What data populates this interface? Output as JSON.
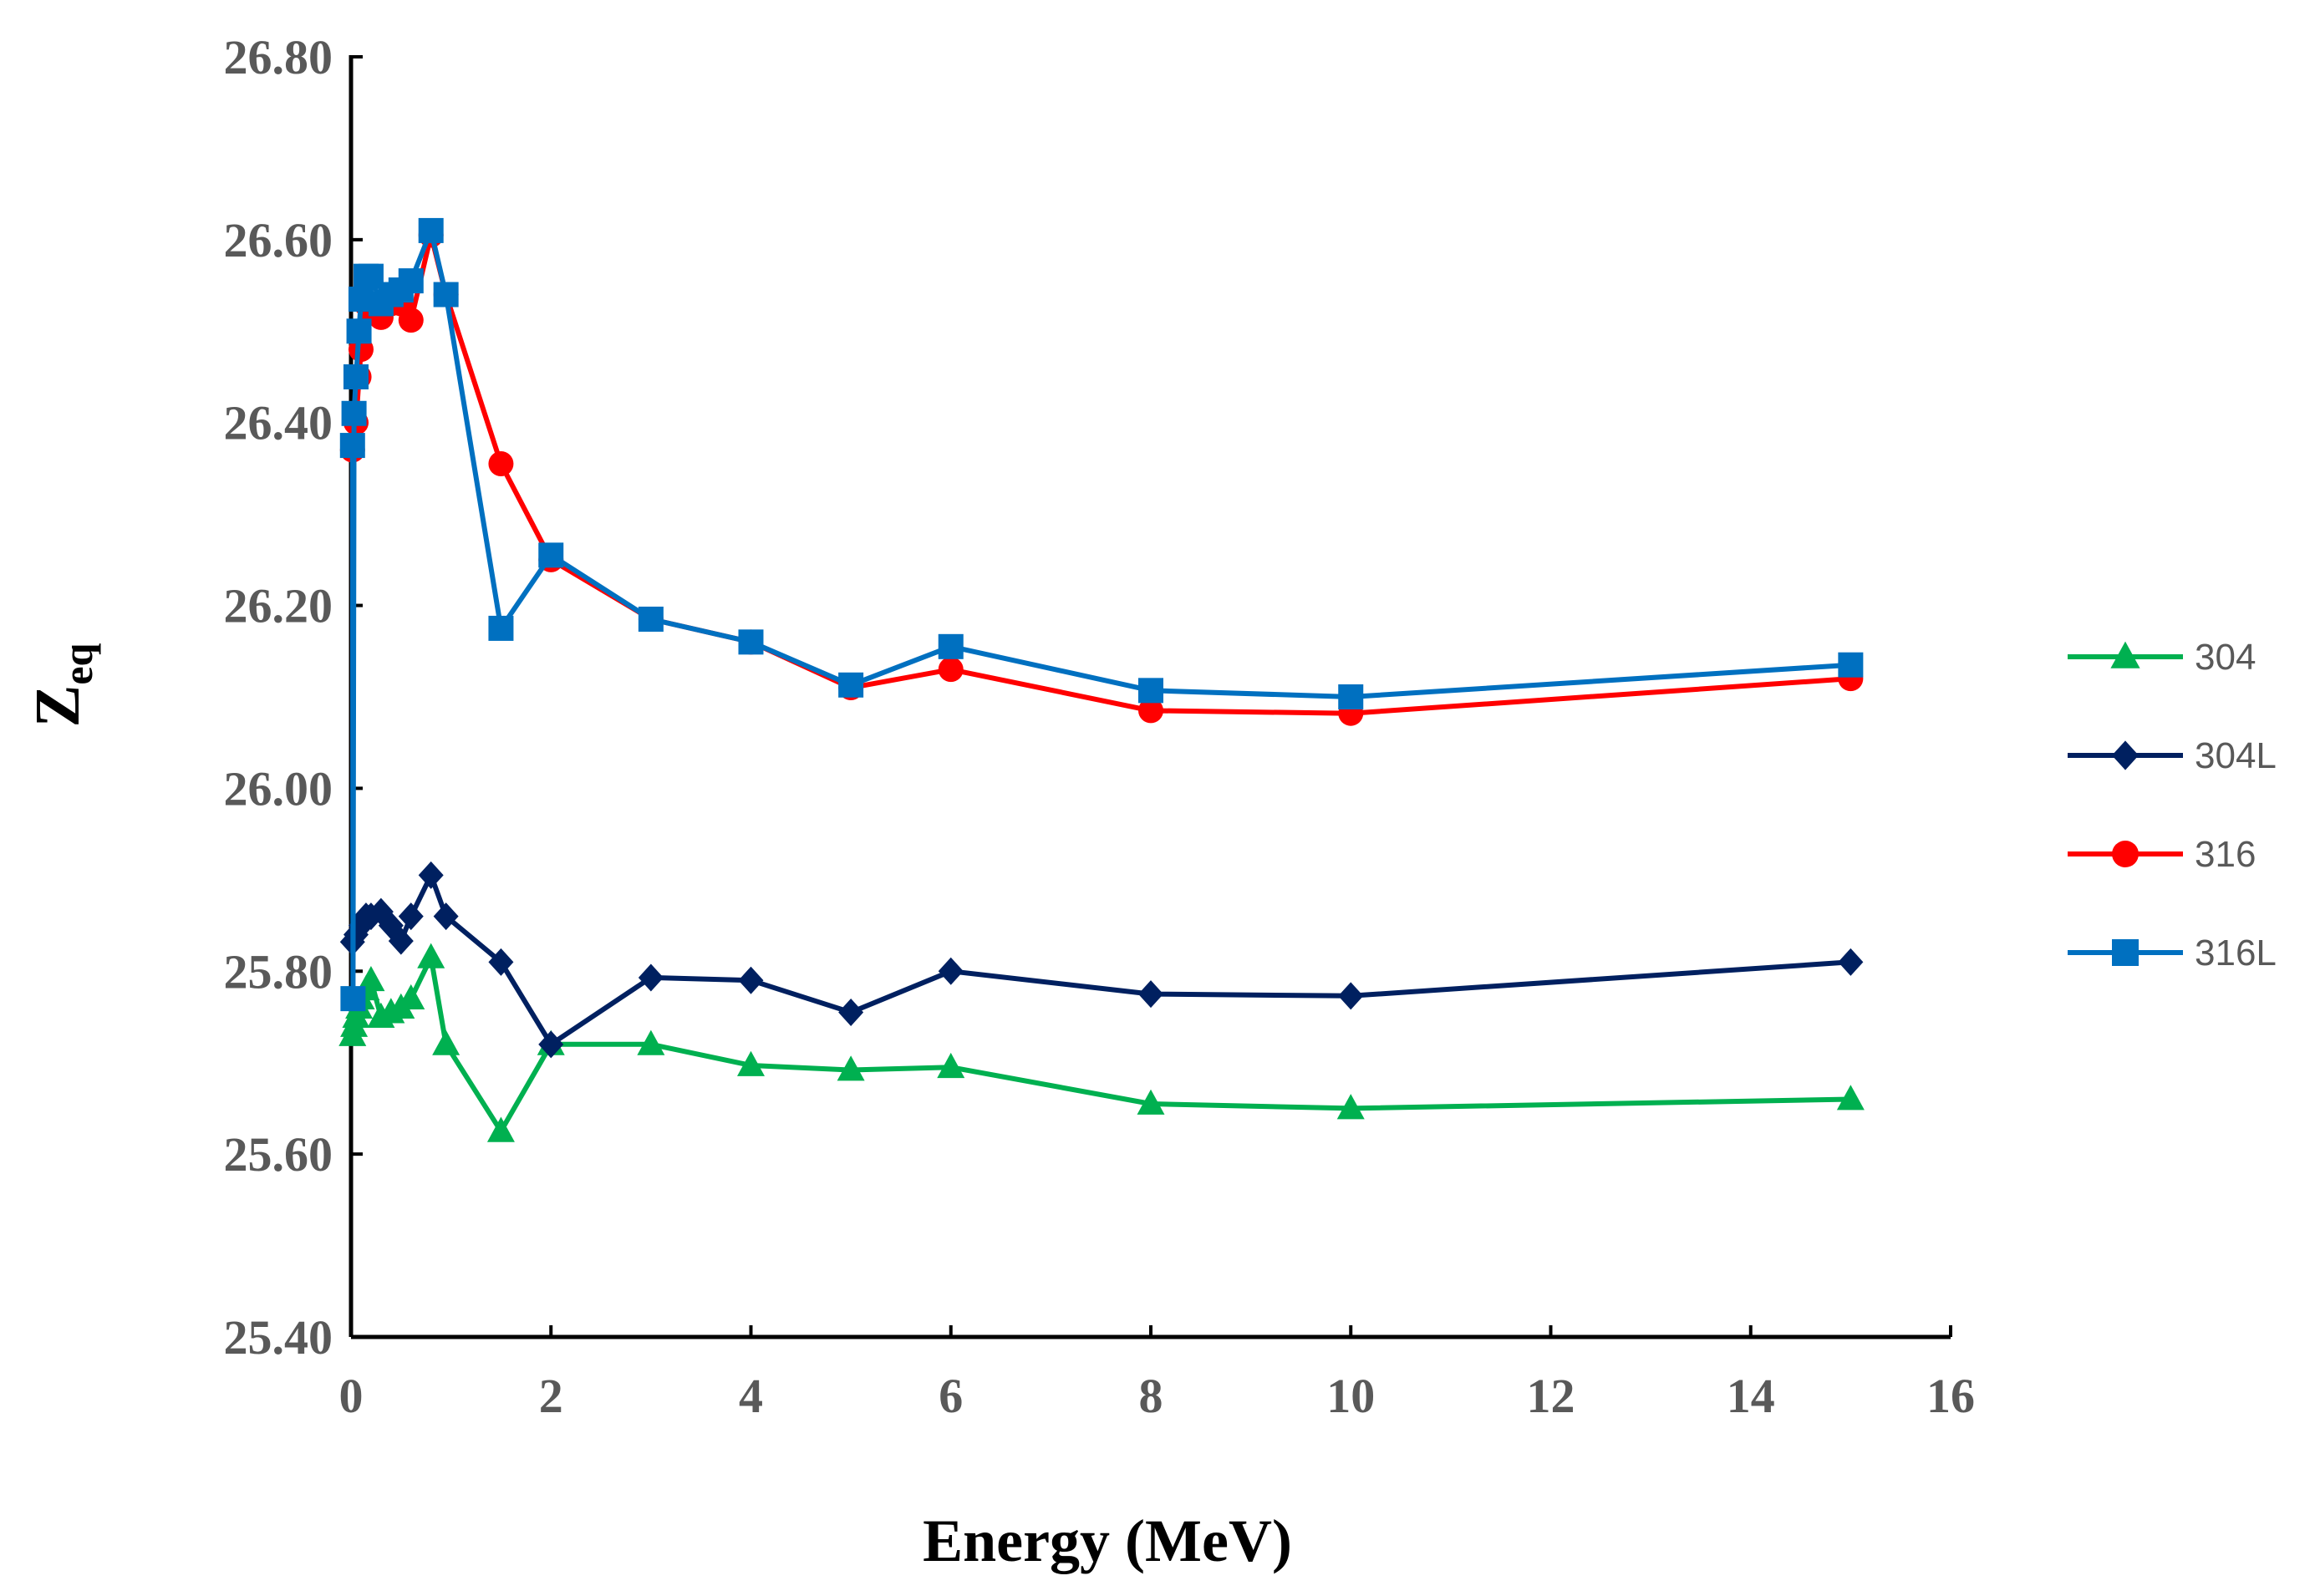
{
  "chart_data": {
    "type": "line",
    "xlabel": "Energy (MeV)",
    "ylabel": {
      "main": "Z",
      "sub": "eq"
    },
    "xlim": [
      0,
      16
    ],
    "ylim": [
      25.4,
      26.8
    ],
    "x_ticks": [
      "0",
      "2",
      "4",
      "6",
      "8",
      "10",
      "12",
      "14",
      "16"
    ],
    "y_ticks": [
      "25.40",
      "25.60",
      "25.80",
      "26.00",
      "26.20",
      "26.40",
      "26.60",
      "26.80"
    ],
    "grid": false,
    "legend_position": "right",
    "series": [
      {
        "name": "304",
        "color": "#00B050",
        "marker": "triangle",
        "points": [
          [
            0.015,
            25.73
          ],
          [
            0.03,
            25.74
          ],
          [
            0.05,
            25.75
          ],
          [
            0.08,
            25.76
          ],
          [
            0.1,
            25.77
          ],
          [
            0.15,
            25.78
          ],
          [
            0.2,
            25.79
          ],
          [
            0.3,
            25.75
          ],
          [
            0.4,
            25.755
          ],
          [
            0.5,
            25.76
          ],
          [
            0.6,
            25.77
          ],
          [
            0.8,
            25.815
          ],
          [
            0.95,
            25.72
          ],
          [
            1.5,
            25.625
          ],
          [
            2,
            25.72
          ],
          [
            3,
            25.72
          ],
          [
            4,
            25.697
          ],
          [
            5,
            25.692
          ],
          [
            6,
            25.695
          ],
          [
            8,
            25.655
          ],
          [
            10,
            25.65
          ],
          [
            15,
            25.66
          ]
        ]
      },
      {
        "name": "304L",
        "color": "#002060",
        "marker": "diamond",
        "points": [
          [
            0.015,
            25.832
          ],
          [
            0.05,
            25.84
          ],
          [
            0.1,
            25.85
          ],
          [
            0.15,
            25.86
          ],
          [
            0.2,
            25.86
          ],
          [
            0.3,
            25.865
          ],
          [
            0.4,
            25.85
          ],
          [
            0.5,
            25.833
          ],
          [
            0.6,
            25.86
          ],
          [
            0.8,
            25.905
          ],
          [
            0.95,
            25.86
          ],
          [
            1.5,
            25.81
          ],
          [
            2,
            25.72
          ],
          [
            3,
            25.793
          ],
          [
            4,
            25.79
          ],
          [
            5,
            25.755
          ],
          [
            6,
            25.8
          ],
          [
            8,
            25.775
          ],
          [
            10,
            25.773
          ],
          [
            15,
            25.81
          ]
        ]
      },
      {
        "name": "316",
        "color": "#FF0000",
        "marker": "circle",
        "points": [
          [
            0.015,
            26.37
          ],
          [
            0.05,
            26.4
          ],
          [
            0.08,
            26.45
          ],
          [
            0.1,
            26.48
          ],
          [
            0.15,
            26.53
          ],
          [
            0.2,
            26.525
          ],
          [
            0.3,
            26.515
          ],
          [
            0.4,
            26.53
          ],
          [
            0.5,
            26.53
          ],
          [
            0.6,
            26.512
          ],
          [
            0.8,
            26.605
          ],
          [
            0.95,
            26.54
          ],
          [
            1.5,
            26.355
          ],
          [
            2,
            26.25
          ],
          [
            3,
            26.185
          ],
          [
            4,
            26.16
          ],
          [
            5,
            26.11
          ],
          [
            6,
            26.13
          ],
          [
            8,
            26.085
          ],
          [
            10,
            26.082
          ],
          [
            15,
            26.12
          ]
        ]
      },
      {
        "name": "316L",
        "color": "#0070C0",
        "marker": "square",
        "points": [
          [
            0.015,
            26.375
          ],
          [
            0.02,
            25.77
          ],
          [
            0.03,
            26.41
          ],
          [
            0.05,
            26.45
          ],
          [
            0.08,
            26.5
          ],
          [
            0.1,
            26.535
          ],
          [
            0.15,
            26.56
          ],
          [
            0.2,
            26.56
          ],
          [
            0.3,
            26.53
          ],
          [
            0.4,
            26.54
          ],
          [
            0.5,
            26.545
          ],
          [
            0.6,
            26.555
          ],
          [
            0.8,
            26.61
          ],
          [
            0.95,
            26.54
          ],
          [
            1.5,
            26.175
          ],
          [
            2,
            26.255
          ],
          [
            3,
            26.185
          ],
          [
            4,
            26.16
          ],
          [
            5,
            26.113
          ],
          [
            6,
            26.155
          ],
          [
            8,
            26.107
          ],
          [
            10,
            26.1
          ],
          [
            15,
            26.135
          ]
        ]
      }
    ]
  }
}
